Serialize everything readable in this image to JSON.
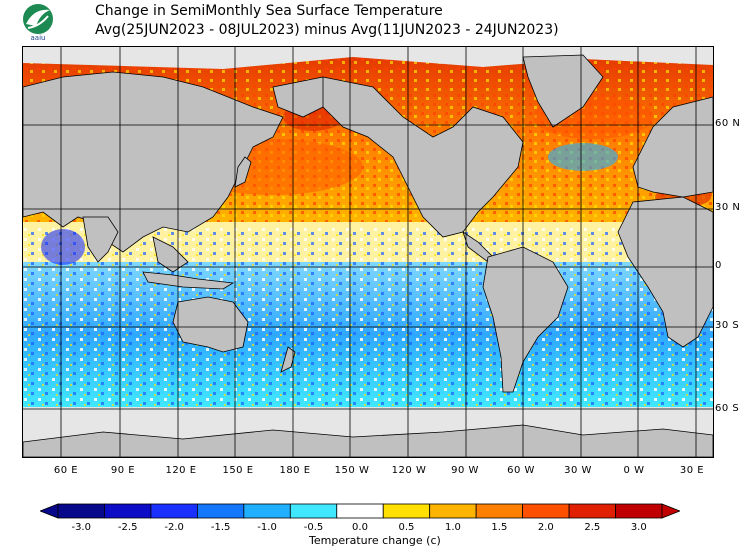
{
  "header": {
    "title_line1": "Change in SemiMonthly Sea Surface Temperature",
    "title_line2": "Avg(25JUN2023 - 08JUL2023) minus Avg(11JUN2023 - 24JUN2023)",
    "logo_text": "aaiu"
  },
  "map": {
    "lat_labels": [
      "60 N",
      "30 N",
      "0",
      "30 S",
      "60 S"
    ],
    "lon_labels": [
      "60 E",
      "90 E",
      "120 E",
      "150 E",
      "180 E",
      "150 W",
      "120 W",
      "90 W",
      "60 W",
      "30 W",
      "0 W",
      "30 E"
    ],
    "colors": {
      "land": "#c0c0c0",
      "ice": "#e6e6e6",
      "grid": "#000000"
    }
  },
  "colorbar": {
    "title": "Temperature change  (c)",
    "ticks": [
      "-3.0",
      "-2.5",
      "-2.0",
      "-1.5",
      "-1.0",
      "-0.5",
      "0.0",
      "0.5",
      "1.0",
      "1.5",
      "2.0",
      "2.5",
      "3.0"
    ],
    "colors": [
      "#08088a",
      "#0d0dc8",
      "#1a30ff",
      "#1478ff",
      "#20b0ff",
      "#40e8ff",
      "#ffffff",
      "#ffe000",
      "#ffb400",
      "#ff8000",
      "#ff5000",
      "#e02000",
      "#c00000"
    ]
  }
}
